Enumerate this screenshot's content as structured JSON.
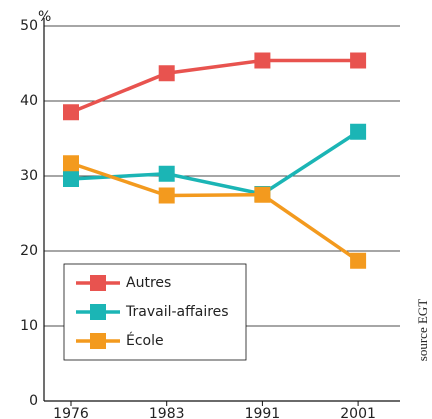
{
  "chart_data": {
    "type": "line",
    "y_unit": "%",
    "source": "source EGT",
    "categories": [
      "1976",
      "1983",
      "1991",
      "2001"
    ],
    "series": [
      {
        "name": "Autres",
        "color": "#e8534f",
        "values": [
          38.5,
          43.7,
          45.4,
          45.4
        ]
      },
      {
        "name": "Travail-affaires",
        "color": "#1bb5b5",
        "values": [
          29.6,
          30.3,
          27.6,
          35.9
        ]
      },
      {
        "name": "École",
        "color": "#f39a1e",
        "values": [
          31.7,
          27.4,
          27.5,
          18.7
        ]
      }
    ],
    "ylim": [
      0,
      50
    ],
    "yticks": [
      0,
      10,
      20,
      30,
      40,
      50
    ],
    "grid": true,
    "legend": "lower left"
  }
}
